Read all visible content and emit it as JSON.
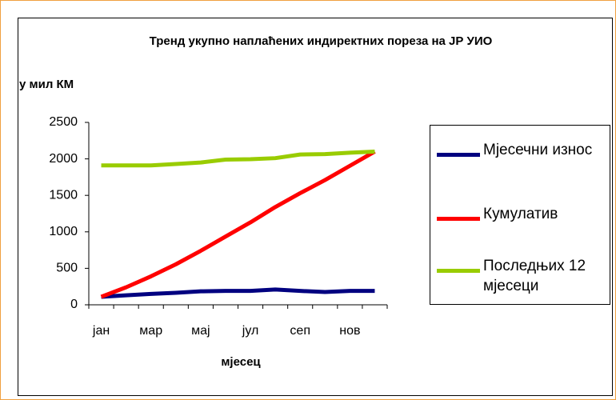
{
  "chart_data": {
    "type": "line",
    "title": "Тренд укупно наплаћених индиректних пореза на ЈР УИО",
    "y_label": "у мил КМ",
    "x_label": "мјесец",
    "categories": [
      "јан",
      null,
      "мар",
      null,
      "мај",
      null,
      "јул",
      null,
      "сеп",
      null,
      "нов",
      null
    ],
    "series": [
      {
        "name": "Мјесечни износ",
        "color": "#000080",
        "values": [
          110,
          130,
          150,
          165,
          185,
          190,
          190,
          210,
          190,
          175,
          190,
          190
        ]
      },
      {
        "name": "Кумулатив",
        "color": "#ff0000",
        "values": [
          110,
          240,
          390,
          555,
          740,
          935,
          1130,
          1340,
          1530,
          1710,
          1905,
          2100
        ]
      },
      {
        "name": "Последњих 12 мјесеци",
        "color": "#99cc00",
        "values": [
          1910,
          1910,
          1910,
          1930,
          1950,
          1990,
          1995,
          2010,
          2060,
          2065,
          2085,
          2100
        ]
      }
    ],
    "ylim": [
      0,
      2500
    ],
    "yticks": [
      0,
      500,
      1000,
      1500,
      2000,
      2500
    ],
    "grid": false,
    "legend": "right"
  }
}
